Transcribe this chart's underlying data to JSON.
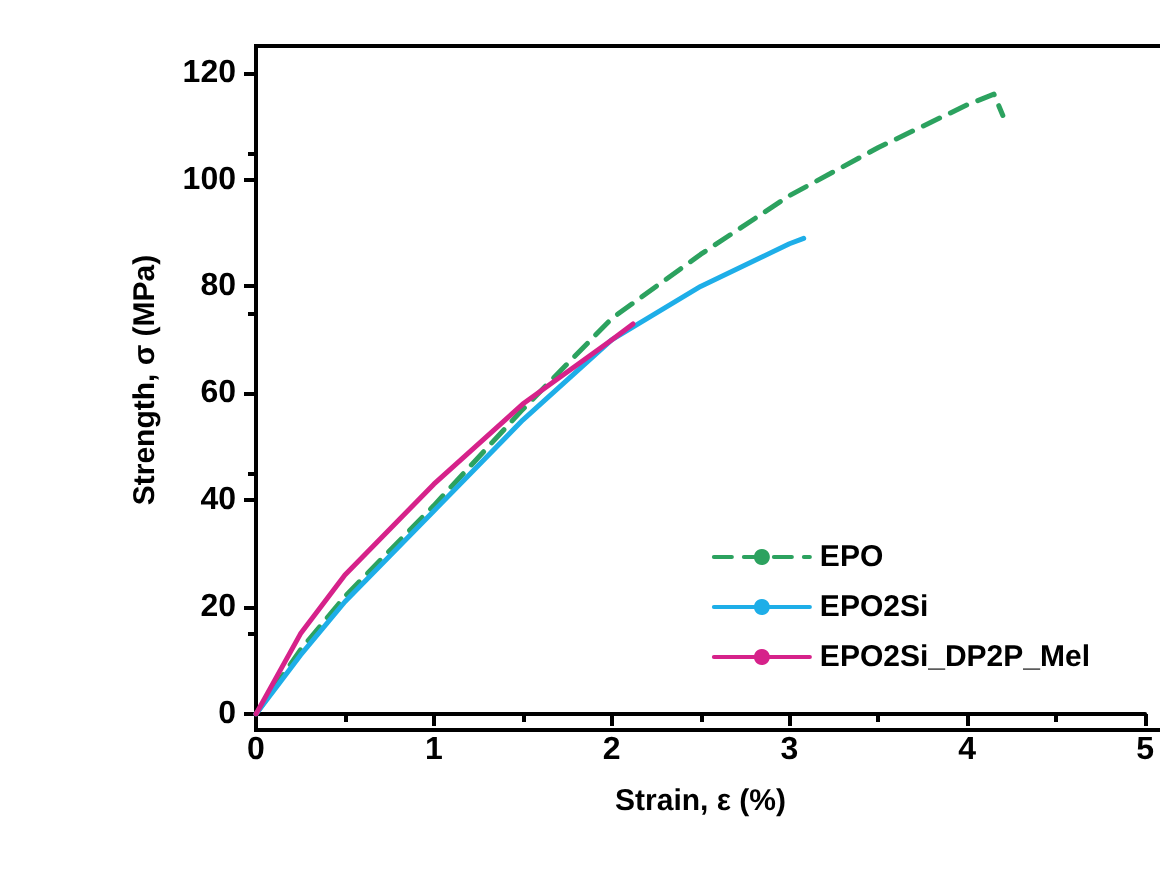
{
  "chart_data": {
    "type": "line",
    "xlabel": "Strain, ε (%)",
    "ylabel": "Strength, σ (MPa)",
    "xlim": [
      0,
      5
    ],
    "ylim": [
      0,
      125
    ],
    "xticks": [
      0,
      1,
      2,
      3,
      4,
      5
    ],
    "yticks": [
      0,
      20,
      40,
      60,
      80,
      100,
      120
    ],
    "grid": false,
    "legend": "bottom right",
    "marker": "none",
    "series": [
      {
        "name": "EPO",
        "color": "#2ca25f",
        "line_style": "dashed",
        "x": [
          0,
          0.25,
          0.5,
          1,
          1.5,
          2,
          2.5,
          3,
          3.5,
          4,
          4.15,
          4.2
        ],
        "values": [
          0,
          12,
          22,
          39,
          57,
          74,
          86,
          97,
          106,
          114,
          116,
          112
        ]
      },
      {
        "name": "EPO2Si",
        "color": "#1eaee8",
        "line_style": "solid",
        "x": [
          0,
          0.25,
          0.5,
          1,
          1.5,
          2,
          2.5,
          3,
          3.08
        ],
        "values": [
          0,
          11,
          21,
          38,
          55,
          70,
          80,
          88,
          89
        ]
      },
      {
        "name": "EPO2Si_DP2P_Mel",
        "color": "#d6228a",
        "line_style": "solid",
        "x": [
          0,
          0.25,
          0.5,
          1,
          1.5,
          2,
          2.12
        ],
        "values": [
          0,
          15,
          26,
          43,
          58,
          70,
          73
        ]
      }
    ]
  }
}
